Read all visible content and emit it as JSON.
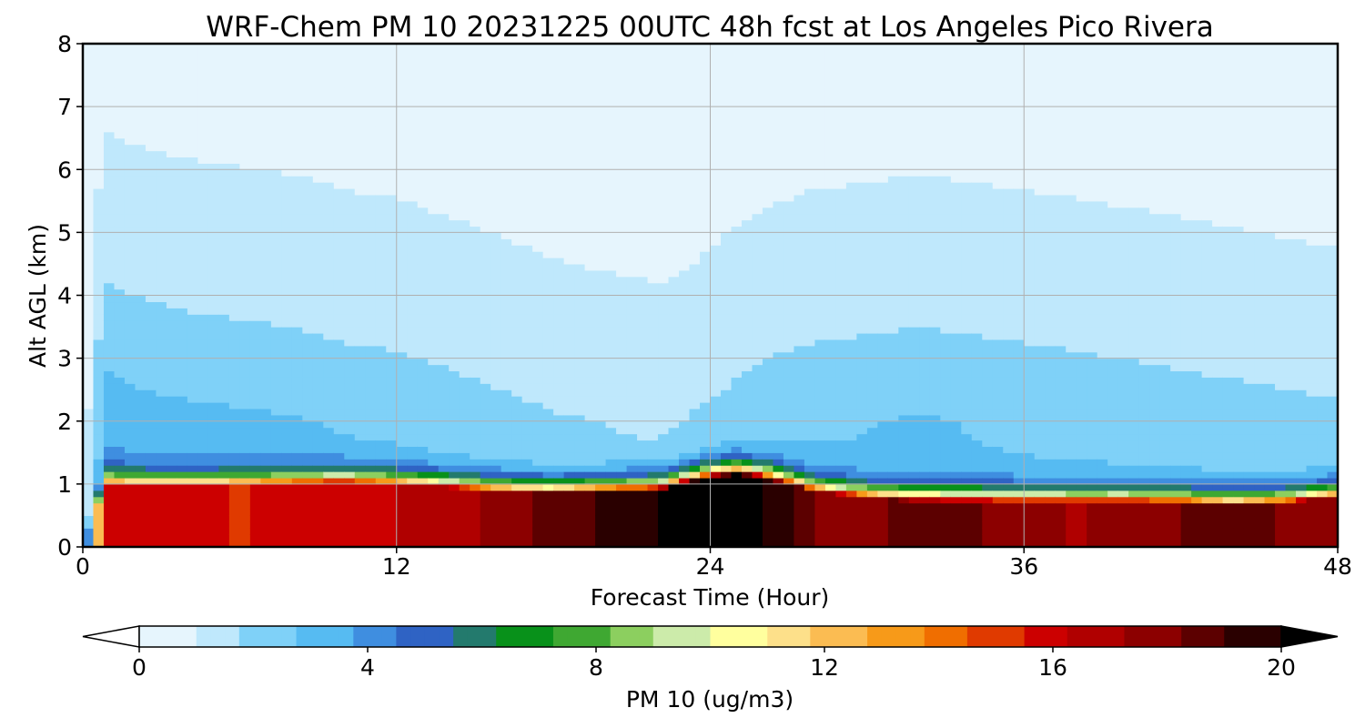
{
  "chart_data": {
    "type": "heatmap",
    "title": "WRF-Chem PM 10  20231225 00UTC 48h fcst at Los Angeles Pico Rivera",
    "xlabel": "Forecast Time (Hour)",
    "ylabel": "Alt AGL (km)",
    "xlim": [
      0,
      48
    ],
    "ylim": [
      0,
      8
    ],
    "x_ticks": [
      0,
      12,
      24,
      36,
      48
    ],
    "y_ticks": [
      0,
      1,
      2,
      3,
      4,
      5,
      6,
      7,
      8
    ],
    "grid": true,
    "colorbar": {
      "label": "PM 10  (ug/m3)",
      "orientation": "horizontal",
      "range": [
        0,
        20
      ],
      "ticks": [
        0,
        4,
        8,
        12,
        16,
        20
      ],
      "extend": "both",
      "colors": [
        "#ffffff",
        "#e6f5fd",
        "#bfe8fc",
        "#7fd1f8",
        "#56bbf2",
        "#3f8ee0",
        "#2f63c4",
        "#237a6d",
        "#08911a",
        "#3fa832",
        "#8ccf5f",
        "#ccebaa",
        "#ffff9e",
        "#fde08a",
        "#fbbc52",
        "#f79a19",
        "#f06e00",
        "#e03a00",
        "#cc0000",
        "#b00000",
        "#8c0000",
        "#5c0000",
        "#2a0000",
        "#000000"
      ]
    },
    "x_hours": [
      0,
      0.5,
      1,
      2,
      4,
      6,
      8,
      10,
      12,
      14,
      16,
      18,
      20,
      22,
      23,
      24,
      25,
      26,
      28,
      30,
      32,
      34,
      36,
      38,
      40,
      42,
      44,
      46,
      48
    ],
    "profile": {
      "blh_km": [
        0,
        0.6,
        1.0,
        0.98,
        0.98,
        1.0,
        1.02,
        1.04,
        1.0,
        0.94,
        0.88,
        0.85,
        0.88,
        0.9,
        1.0,
        1.1,
        1.15,
        1.1,
        0.88,
        0.78,
        0.73,
        0.72,
        0.72,
        0.72,
        0.72,
        0.7,
        0.66,
        0.7,
        0.8
      ],
      "blh_peak": [
        0,
        11,
        16,
        15.5,
        15.6,
        15.4,
        15.8,
        16.0,
        16.4,
        17.0,
        17.5,
        18.5,
        19.3,
        20.0,
        20.6,
        21.2,
        21.0,
        20.0,
        18.2,
        17.8,
        18.6,
        18.4,
        17.6,
        17.2,
        17.6,
        18.2,
        18.6,
        18.1,
        17.5
      ],
      "free_trop_ug_m3": [
        0,
        2.4,
        3.4,
        3.2,
        3.0,
        2.9,
        2.8,
        2.6,
        2.5,
        2.3,
        2.1,
        1.9,
        1.8,
        1.7,
        1.8,
        2.0,
        2.2,
        2.4,
        2.6,
        2.7,
        2.8,
        2.7,
        2.6,
        2.5,
        2.4,
        2.3,
        2.2,
        2.1,
        2.0
      ]
    }
  }
}
